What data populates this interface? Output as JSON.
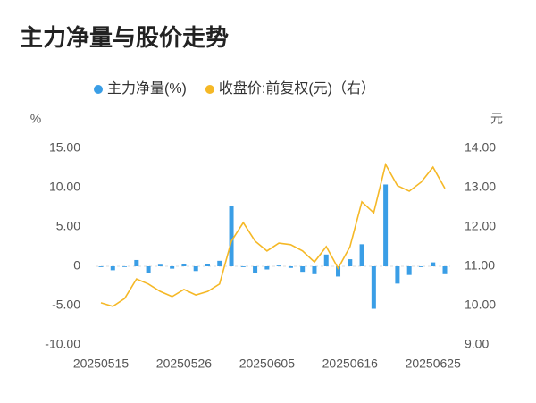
{
  "chart_data": {
    "type": "bar_line",
    "title": "主力净量与股价走势",
    "y_label": "%",
    "y2_label": "元",
    "categories": [
      "20250515",
      null,
      null,
      null,
      null,
      null,
      null,
      "20250526",
      null,
      null,
      null,
      null,
      null,
      null,
      "20250605",
      null,
      null,
      null,
      null,
      null,
      null,
      "20250616",
      null,
      null,
      null,
      null,
      null,
      null,
      "20250625",
      null
    ],
    "series": [
      {
        "name": "主力净量(%)",
        "type": "bar",
        "color": "#3a9ee6",
        "values": [
          -0.1,
          -0.5,
          0,
          0.8,
          -0.9,
          0.2,
          -0.3,
          0.3,
          -0.6,
          0.3,
          0.7,
          7.7,
          -0.1,
          -0.8,
          -0.4,
          0.1,
          -0.2,
          -0.7,
          -1.0,
          1.5,
          -1.3,
          0.9,
          2.8,
          -5.4,
          10.4,
          -2.2,
          -1.1,
          -0.1,
          0.5,
          -1.0
        ]
      },
      {
        "name": "收盘价:前复权(元)（右）",
        "type": "line",
        "axis": "y2",
        "color": "#f5b826",
        "values": [
          10.07,
          9.98,
          10.18,
          10.68,
          10.55,
          10.36,
          10.23,
          10.41,
          10.27,
          10.36,
          10.55,
          11.64,
          12.11,
          11.64,
          11.39,
          11.59,
          11.55,
          11.39,
          11.11,
          11.5,
          10.95,
          11.5,
          12.64,
          12.36,
          13.59,
          13.05,
          12.91,
          13.14,
          13.52,
          12.98
        ]
      }
    ],
    "ylim": [
      -10,
      15
    ],
    "yticks": [
      {
        "value": -10,
        "label": "-10.00"
      },
      {
        "value": -5,
        "label": "-5.00"
      },
      0,
      {
        "value": 5,
        "label": "5.00"
      },
      {
        "value": 10,
        "label": "10.00"
      },
      {
        "value": 15,
        "label": "15.00"
      }
    ],
    "y2lim": [
      9,
      14
    ],
    "y2ticks": [
      {
        "value": 9,
        "label": "9.00"
      },
      {
        "value": 10,
        "label": "10.00"
      },
      {
        "value": 11,
        "label": "11.00"
      },
      {
        "value": 12,
        "label": "12.00"
      },
      {
        "value": 13,
        "label": "13.00"
      },
      {
        "value": 14,
        "label": "14.00"
      }
    ]
  }
}
